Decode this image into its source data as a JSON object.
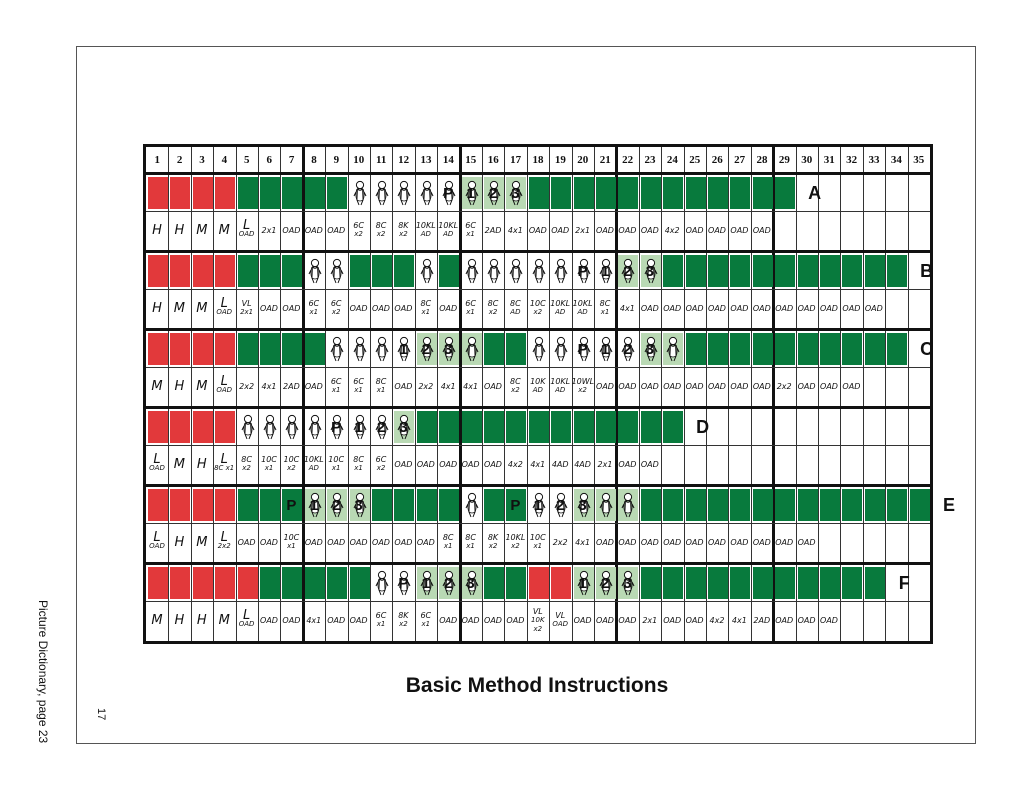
{
  "page": {
    "title": "Basic Method Instructions",
    "side_label": "Picture Dictionary, page 23",
    "page_number": "17"
  },
  "columns": [
    "1",
    "2",
    "3",
    "4",
    "5",
    "6",
    "7",
    "8",
    "9",
    "10",
    "11",
    "12",
    "13",
    "14",
    "15",
    "16",
    "17",
    "18",
    "19",
    "20",
    "21",
    "22",
    "23",
    "24",
    "25",
    "26",
    "27",
    "28",
    "29",
    "30",
    "31",
    "32",
    "33",
    "34",
    "35"
  ],
  "rows": [
    {
      "letter": "A",
      "cells": "RRRRGGGGGBBBBBLLLGGGGGGGGGGGG",
      "labels": [
        [
          14,
          "P"
        ],
        [
          15,
          "1"
        ],
        [
          16,
          "2"
        ],
        [
          17,
          "3"
        ]
      ],
      "notes": [
        "H",
        "H",
        "M",
        "M",
        "L|OAD",
        "2x1",
        "OAD",
        "OAD",
        "OAD",
        "6C|x2",
        "8C|x2",
        "8K|x2",
        "10KL|AD",
        "10KL|AD",
        "6C|x1",
        "2AD",
        "4x1",
        "OAD",
        "OAD",
        "2x1",
        "OAD",
        "OAD",
        "OAD",
        "4x2",
        "OAD",
        "OAD",
        "OAD",
        "OAD"
      ]
    },
    {
      "letter": "B",
      "cells": "RRRRGGGBBGGGBGBBBBBBBLLGGGGGGGGGGG",
      "labels": [
        [
          20,
          "P"
        ],
        [
          21,
          "1"
        ],
        [
          22,
          "2"
        ],
        [
          23,
          "3"
        ]
      ],
      "notes": [
        "H",
        "M",
        "M",
        "L|OAD",
        "VL|2x1",
        "OAD",
        "OAD",
        "6C|x1",
        "6C|x2",
        "OAD",
        "OAD",
        "OAD",
        "8C|x1",
        "OAD",
        "6C|x1",
        "8C|x2",
        "8C|AD",
        "10C|x2",
        "10KL|AD",
        "10KL|AD",
        "8C|x1",
        "4x1",
        "OAD",
        "OAD",
        "OAD",
        "OAD",
        "OAD",
        "OAD",
        "OAD",
        "OAD",
        "OAD",
        "OAD",
        "OAD"
      ]
    },
    {
      "letter": "C",
      "cells": "RRRRGGGGBBBBLLLGGBBBBBLLGGGGGGGGGG",
      "labels": [
        [
          12,
          "1"
        ],
        [
          13,
          "2"
        ],
        [
          14,
          "3"
        ],
        [
          20,
          "P"
        ],
        [
          21,
          "1"
        ],
        [
          22,
          "2"
        ],
        [
          23,
          "3"
        ]
      ],
      "notes": [
        "M",
        "H",
        "M",
        "L|OAD",
        "2x2",
        "4x1",
        "2AD",
        "OAD",
        "6C|x1",
        "6C|x1",
        "8C|x1",
        "OAD",
        "2x2",
        "4x1",
        "4x1",
        "OAD",
        "8C|x2",
        "10K|AD",
        "10KL|AD",
        "10WL|x2",
        "OAD",
        "OAD",
        "OAD",
        "OAD",
        "OAD",
        "OAD",
        "OAD",
        "OAD",
        "2x2",
        "OAD",
        "OAD",
        "OAD"
      ]
    },
    {
      "letter": "D",
      "cells": "RRRRBBBBBBBLGGGGGGGGGGGG",
      "labels": [
        [
          9,
          "P"
        ],
        [
          10,
          "1"
        ],
        [
          11,
          "2"
        ],
        [
          12,
          "3"
        ]
      ],
      "notes": [
        "L|OAD",
        "M",
        "H",
        "L|8C x1",
        "8C|x2",
        "10C|x1",
        "10C|x2",
        "10KL|AD",
        "10C|x1",
        "8C|x1",
        "6C|x2",
        "OAD",
        "OAD",
        "OAD",
        "OAD",
        "OAD",
        "4x2",
        "4x1",
        "4AD",
        "4AD",
        "2x1",
        "OAD",
        "OAD"
      ]
    },
    {
      "letter": "E",
      "cells": "RRRRGGGLLLGGGGBGGBBLLLGGGGGGGGGGGGG",
      "labels": [
        [
          7,
          "P"
        ],
        [
          8,
          "1"
        ],
        [
          9,
          "2"
        ],
        [
          10,
          "3"
        ],
        [
          17,
          "P"
        ],
        [
          18,
          "1"
        ],
        [
          19,
          "2"
        ],
        [
          20,
          "3"
        ]
      ],
      "notes": [
        "L|OAD",
        "H",
        "M",
        "L|2x2",
        "OAD",
        "OAD",
        "10C|x1",
        "OAD",
        "OAD",
        "OAD",
        "OAD",
        "OAD",
        "OAD",
        "8C|x1",
        "8C|x1",
        "8K|x2",
        "10KL|x2",
        "10C|x1",
        "2x2",
        "4x1",
        "OAD",
        "OAD",
        "OAD",
        "OAD",
        "OAD",
        "OAD",
        "OAD",
        "OAD",
        "OAD",
        "OAD"
      ]
    },
    {
      "letter": "F",
      "cells": "RRRRRGGGGGBBLLLGGRRLLLGGGGGGGGGGG",
      "labels": [
        [
          12,
          "P"
        ],
        [
          13,
          "1"
        ],
        [
          14,
          "2"
        ],
        [
          15,
          "3"
        ],
        [
          20,
          "1"
        ],
        [
          21,
          "2"
        ],
        [
          22,
          "3"
        ]
      ],
      "notes": [
        "M",
        "H",
        "H",
        "M",
        "L|OAD",
        "OAD",
        "OAD",
        "4x1",
        "OAD",
        "OAD",
        "6C|x1",
        "8K|x2",
        "6C|x1",
        "OAD",
        "OAD",
        "OAD",
        "OAD",
        "VL|10K x2",
        "VL|OAD",
        "OAD",
        "OAD",
        "OAD",
        "2x1",
        "OAD",
        "OAD",
        "4x2",
        "4x1",
        "2AD",
        "OAD",
        "OAD",
        "OAD"
      ]
    }
  ],
  "colors": {
    "red": "#e2393b",
    "green": "#087a3d",
    "light_green": "#b9d9b4"
  }
}
